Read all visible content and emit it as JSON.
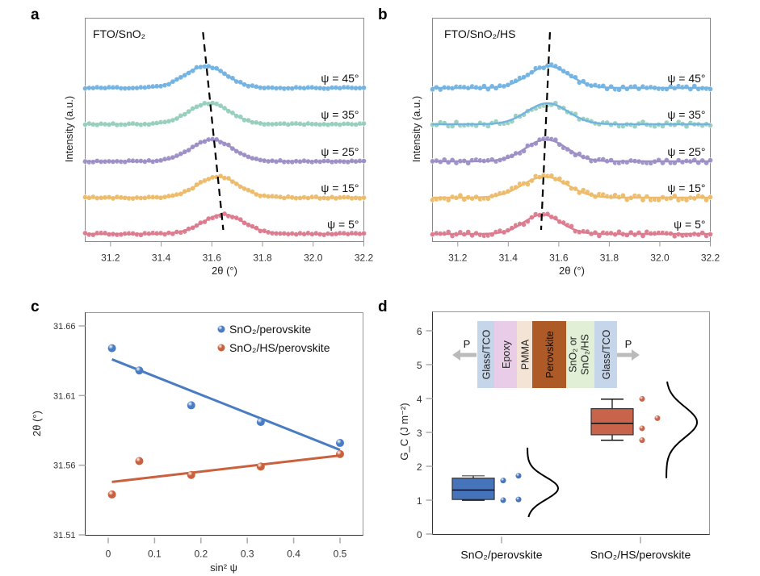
{
  "chart_data": [
    {
      "panel": "a",
      "type": "line",
      "title": "FTO/SnO₂",
      "xlabel": "2θ (°)",
      "ylabel": "Intensity (a.u.)",
      "xlim": [
        31.1,
        32.2
      ],
      "xticks": [
        "31.2",
        "31.4",
        "31.6",
        "31.8",
        "32.0",
        "32.2"
      ],
      "series": [
        {
          "name": "ψ = 5°",
          "color": "#dc7a8e",
          "peak_center": 31.645,
          "width": 0.1,
          "noise": 0.06
        },
        {
          "name": "ψ = 15°",
          "color": "#edbb69",
          "peak_center": 31.625,
          "width": 0.1,
          "noise": 0.06
        },
        {
          "name": "ψ = 25°",
          "color": "#9c8fc6",
          "peak_center": 31.6,
          "width": 0.1,
          "noise": 0.05
        },
        {
          "name": "ψ = 35°",
          "color": "#96cfbb",
          "peak_center": 31.59,
          "width": 0.1,
          "noise": 0.05
        },
        {
          "name": "ψ = 45°",
          "color": "#73b3e2",
          "peak_center": 31.575,
          "width": 0.1,
          "noise": 0.05
        }
      ],
      "guide_line": {
        "style": "dashed",
        "from": [
          31.565,
          "top"
        ],
        "to": [
          31.645,
          "bottom"
        ]
      }
    },
    {
      "panel": "b",
      "type": "line",
      "title": "FTO/SnO₂/HS",
      "xlabel": "2θ (°)",
      "ylabel": "Intensity (a.u.)",
      "xlim": [
        31.1,
        32.2
      ],
      "xticks": [
        "31.2",
        "31.4",
        "31.6",
        "31.8",
        "32.0",
        "32.2"
      ],
      "series": [
        {
          "name": "ψ = 5°",
          "color": "#dc7a8e",
          "peak_center": 31.535,
          "width": 0.09,
          "noise": 0.14
        },
        {
          "name": "ψ = 15°",
          "color": "#edbb69",
          "peak_center": 31.545,
          "width": 0.11,
          "noise": 0.16
        },
        {
          "name": "ψ = 25°",
          "color": "#9c8fc6",
          "peak_center": 31.55,
          "width": 0.1,
          "noise": 0.12
        },
        {
          "name": "ψ = 35°",
          "color": "#96cfbb",
          "fit_color": "#73b3e2",
          "peak_center": 31.555,
          "width": 0.1,
          "noise": 0.14
        },
        {
          "name": "ψ = 45°",
          "color": "#73b3e2",
          "peak_center": 31.56,
          "width": 0.1,
          "noise": 0.12
        }
      ],
      "guide_line": {
        "style": "dashed",
        "from": [
          31.565,
          "top"
        ],
        "to": [
          31.53,
          "bottom"
        ]
      }
    },
    {
      "panel": "c",
      "type": "scatter",
      "xlabel": "sin² ψ",
      "ylabel": "2θ (°)",
      "xlim": [
        -0.05,
        0.55
      ],
      "ylim": [
        31.51,
        31.67
      ],
      "xticks": [
        "0",
        "0.1",
        "0.2",
        "0.3",
        "0.4",
        "0.5"
      ],
      "yticks": [
        "31.51",
        "31.56",
        "31.61",
        "31.66"
      ],
      "legend": "top-right",
      "series": [
        {
          "name": "SnO₂/perovskite",
          "color": "#4a7cc4",
          "x": [
            0.008,
            0.067,
            0.179,
            0.329,
            0.5
          ],
          "y": [
            31.644,
            31.628,
            31.603,
            31.591,
            31.576
          ],
          "fit": {
            "x": [
              0.008,
              0.5
            ],
            "y": [
              31.636,
              31.571
            ]
          }
        },
        {
          "name": "SnO₂/HS/perovskite",
          "color": "#c9603e",
          "x": [
            0.008,
            0.067,
            0.179,
            0.329,
            0.5
          ],
          "y": [
            31.539,
            31.563,
            31.553,
            31.559,
            31.568
          ],
          "fit": {
            "x": [
              0.008,
              0.5
            ],
            "y": [
              31.548,
              31.567
            ]
          }
        }
      ]
    },
    {
      "panel": "d",
      "type": "box",
      "ylabel": "G_C (J m⁻²)",
      "ylim": [
        0,
        6.5
      ],
      "yticks": [
        "0",
        "1",
        "2",
        "3",
        "4",
        "5",
        "6"
      ],
      "categories": [
        "SnO₂/perovskite",
        "SnO₂/HS/perovskite"
      ],
      "series": [
        {
          "name": "SnO₂/perovskite",
          "color": "#4574ba",
          "box": {
            "min": 1.0,
            "q1": 1.02,
            "median": 1.3,
            "q3": 1.65,
            "max": 1.72
          },
          "points": [
            1.58,
            1.72,
            1.0,
            1.02
          ],
          "distribution": {
            "mean": 1.35,
            "sd": 0.33,
            "range": [
              0.5,
              2.55
            ]
          }
        },
        {
          "name": "SnO₂/HS/perovskite",
          "color": "#c8644a",
          "box": {
            "min": 2.77,
            "q1": 2.93,
            "median": 3.27,
            "q3": 3.7,
            "max": 3.98
          },
          "points": [
            3.99,
            3.42,
            3.12,
            2.77
          ],
          "distribution": {
            "mean": 3.3,
            "sd": 0.45,
            "range": [
              1.65,
              4.5
            ]
          }
        }
      ],
      "inset": {
        "arrow_label": "P",
        "layers": [
          {
            "label": "Glass/TCO",
            "color": "#c5d6eb"
          },
          {
            "label": "Epoxy",
            "color": "#e9cde8"
          },
          {
            "label": "PMMA",
            "color": "#f4e4d6"
          },
          {
            "label": "Perovskite",
            "color": "#ad5a27"
          },
          {
            "label": "SnO₂ or SnO₂/HS",
            "line1": "SnO₂ or",
            "line2": "SnO₂/HS",
            "color": "#e0efd6"
          },
          {
            "label": "Glass/TCO",
            "color": "#c5d6eb"
          }
        ]
      }
    }
  ],
  "panel_labels": [
    "a",
    "b",
    "c",
    "d"
  ]
}
